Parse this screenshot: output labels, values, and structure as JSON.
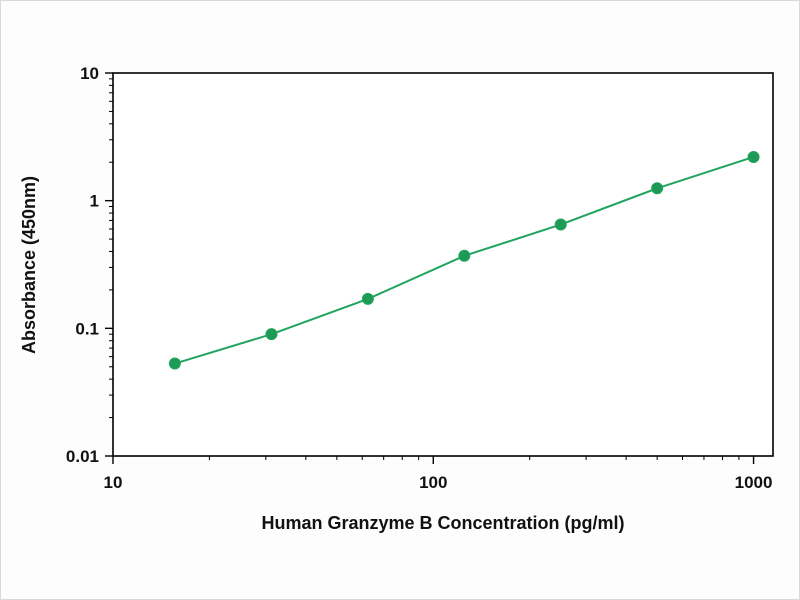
{
  "chart_data": {
    "type": "line",
    "title": "",
    "xlabel": "Human Granzyme B Concentration (pg/ml)",
    "ylabel": "Absorbance (450nm)",
    "x": [
      15.6,
      31.25,
      62.5,
      125,
      250,
      500,
      1000
    ],
    "y": [
      0.053,
      0.09,
      0.17,
      0.37,
      0.65,
      1.25,
      2.2
    ],
    "x_scale": "log",
    "y_scale": "log",
    "xlim": [
      10,
      1150
    ],
    "ylim": [
      0.01,
      10
    ],
    "x_ticks": [
      10,
      100,
      1000
    ],
    "y_ticks": [
      0.01,
      0.1,
      1,
      10
    ],
    "grid": false,
    "legend_position": "none",
    "line_color": "#21a45d",
    "marker_color": "#1d9a56",
    "axis_color": "#000000"
  }
}
